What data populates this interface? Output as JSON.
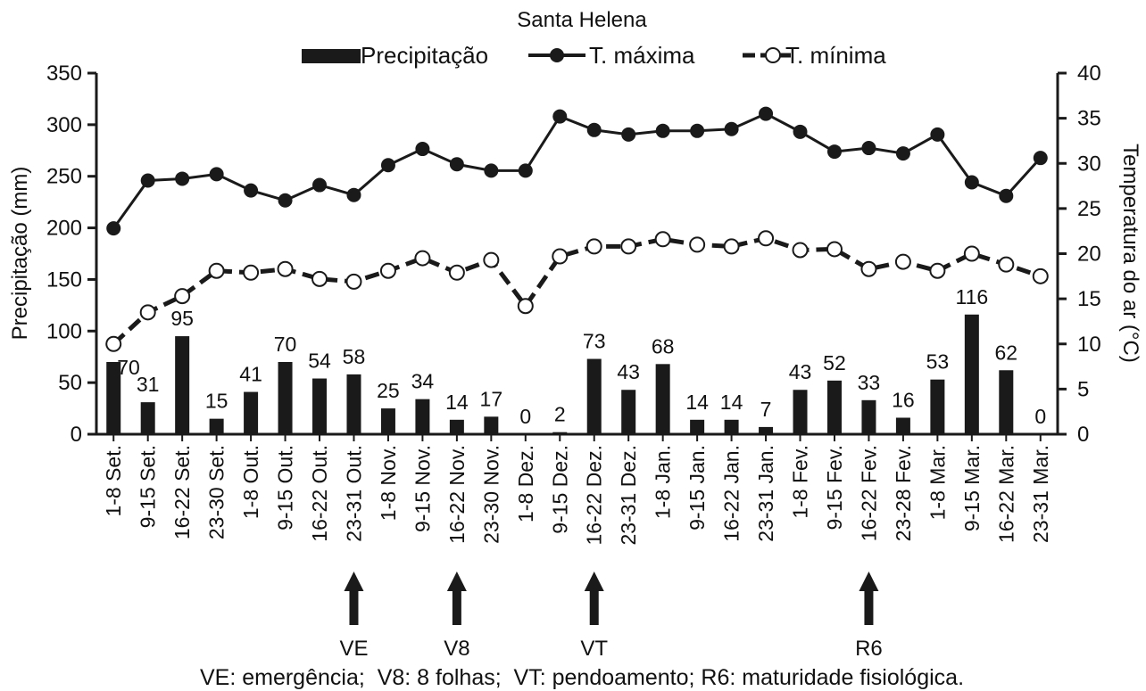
{
  "chart_data": {
    "type": "bar+line",
    "title": "Santa Helena",
    "categories": [
      "1-8 Set.",
      "9-15 Set.",
      "16-22 Set.",
      "23-30 Set.",
      "1-8 Out.",
      "9-15 Out.",
      "16-22 Out.",
      "23-31 Out.",
      "1-8 Nov.",
      "9-15 Nov.",
      "16-22 Nov.",
      "23-30 Nov.",
      "1-8 Dez.",
      "9-15 Dez.",
      "16-22 Dez.",
      "23-31 Dez.",
      "1-8 Jan.",
      "9-15 Jan.",
      "16-22 Jan.",
      "23-31 Jan.",
      "1-8 Fev.",
      "9-15 Fev.",
      "16-22 Fev.",
      "23-28 Fev.",
      "1-8 Mar.",
      "9-15 Mar.",
      "16-22 Mar.",
      "23-31 Mar."
    ],
    "series": [
      {
        "name": "Precipitação",
        "type": "bar",
        "axis": "left",
        "color": "#1a1a1a",
        "values": [
          70,
          31,
          95,
          15,
          41,
          70,
          54,
          58,
          25,
          34,
          14,
          17,
          0,
          2,
          73,
          43,
          68,
          14,
          14,
          7,
          43,
          52,
          33,
          16,
          53,
          116,
          62,
          0
        ]
      },
      {
        "name": "T. máxima",
        "type": "line",
        "axis": "right",
        "style": "solid",
        "marker": "filled-circle",
        "color": "#1a1a1a",
        "values": [
          22.8,
          28.1,
          28.3,
          28.8,
          27.0,
          25.9,
          27.6,
          26.5,
          29.8,
          31.6,
          29.9,
          29.2,
          29.2,
          35.2,
          33.7,
          33.2,
          33.6,
          33.6,
          33.8,
          35.5,
          33.5,
          31.3,
          31.7,
          31.1,
          33.2,
          27.9,
          26.4,
          30.6
        ]
      },
      {
        "name": "T. mínima",
        "type": "line",
        "axis": "right",
        "style": "dashed",
        "marker": "open-circle",
        "color": "#1a1a1a",
        "values": [
          10.0,
          13.5,
          15.3,
          18.1,
          17.9,
          18.3,
          17.2,
          16.9,
          18.1,
          19.5,
          17.9,
          19.3,
          14.2,
          19.7,
          20.8,
          20.8,
          21.6,
          21.0,
          20.8,
          21.7,
          20.4,
          20.5,
          18.3,
          19.1,
          18.1,
          20.0,
          18.8,
          17.5
        ]
      }
    ],
    "ylabel": "Precipitação (mm)",
    "y2label": "Temperatura do ar (°C)",
    "ylim": [
      0,
      350
    ],
    "y2lim": [
      0,
      40
    ],
    "yticks": [
      "0",
      "50",
      "100",
      "150",
      "200",
      "250",
      "300",
      "350"
    ],
    "y2ticks": [
      "0",
      "5",
      "10",
      "15",
      "20",
      "25",
      "30",
      "35",
      "40"
    ],
    "legend_position": "top",
    "grid": false,
    "annotations": [
      {
        "label": "VE",
        "category": "23-31 Out."
      },
      {
        "label": "V8",
        "category": "16-22 Nov."
      },
      {
        "label": "VT",
        "category": "16-22 Dez."
      },
      {
        "label": "R6",
        "category": "16-22 Fev."
      }
    ],
    "footnote": "VE: emergência;  V8: 8 folhas;  VT: pendoamento; R6: maturidade fisiológica."
  }
}
